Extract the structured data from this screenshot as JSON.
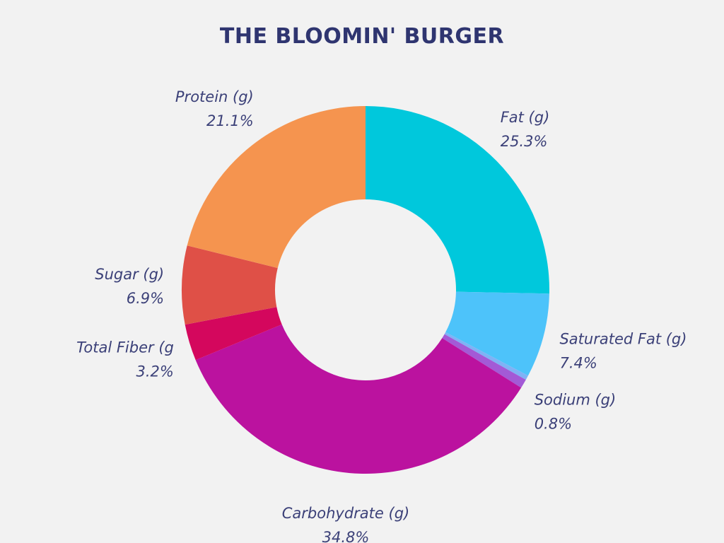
{
  "chart_data": {
    "type": "pie",
    "title": "THE BLOOMIN' BURGER",
    "hole": true,
    "slices": [
      {
        "label": "Fat (g)",
        "value": 25.3,
        "pct_text": "25.3%",
        "color": "#00c8dc"
      },
      {
        "label": "Saturated Fat (g)",
        "value": 7.4,
        "pct_text": "7.4%",
        "color": "#4dc3fa"
      },
      {
        "label": "",
        "value": 0.4,
        "pct_text": "",
        "color": "#7fb2f5"
      },
      {
        "label": "Sodium (g)",
        "value": 0.8,
        "pct_text": "0.8%",
        "color": "#a35ad6"
      },
      {
        "label": "Carbohydrate (g)",
        "value": 34.8,
        "pct_text": "34.8%",
        "color": "#bb129f"
      },
      {
        "label": "Total Fiber (g",
        "value": 3.2,
        "pct_text": "3.2%",
        "color": "#d4075d"
      },
      {
        "label": "Sugar (g)",
        "value": 6.9,
        "pct_text": "6.9%",
        "color": "#df5047"
      },
      {
        "label": "Protein (g)",
        "value": 21.1,
        "pct_text": "21.1%",
        "color": "#f5944f"
      }
    ]
  },
  "colors": {
    "background": "#f2f2f2",
    "title": "#2f3570",
    "label": "#3b4078"
  }
}
